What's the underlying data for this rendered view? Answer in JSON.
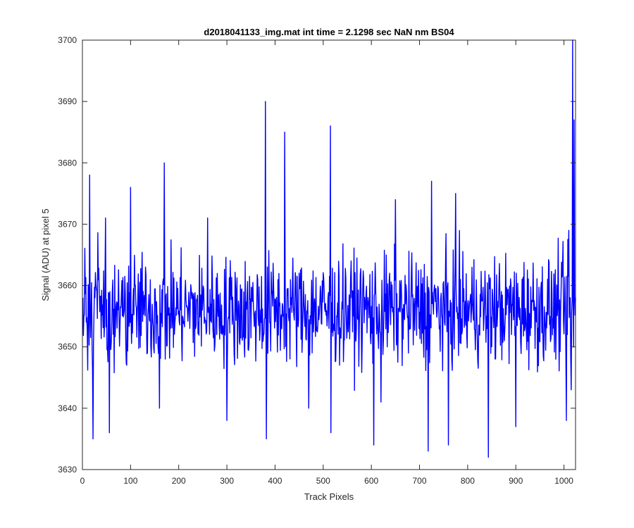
{
  "chart_data": {
    "type": "line",
    "title": "d2018041133_img.mat int time = 2.1298 sec  NaN nm BS04",
    "xlabel": "Track Pixels",
    "ylabel": "Signal (ADU) at pixel 5",
    "xlim": [
      0,
      1024
    ],
    "ylim": [
      3630,
      3700
    ],
    "xticks": [
      0,
      100,
      200,
      300,
      400,
      500,
      600,
      700,
      800,
      900,
      1000
    ],
    "yticks": [
      3630,
      3640,
      3650,
      3660,
      3670,
      3680,
      3690,
      3700
    ],
    "grid": false,
    "line_color": "#0000ff",
    "series": [
      {
        "x": [
          1,
          15,
          22,
          48,
          56,
          100,
          160,
          170,
          172,
          260,
          300,
          380,
          382,
          420,
          470,
          515,
          516,
          605,
          620,
          650,
          718,
          725,
          760,
          775,
          843,
          900,
          1005,
          1010,
          1015,
          1018,
          1020,
          1021,
          1024
        ],
        "y": [
          3658,
          3678,
          3635,
          3671,
          3636,
          3676,
          3640,
          3680,
          3648,
          3671,
          3638,
          3690,
          3635,
          3685,
          3640,
          3686,
          3636,
          3634,
          3641,
          3674,
          3633,
          3677,
          3634,
          3675,
          3632,
          3637,
          3638,
          3669,
          3643,
          3700,
          3650,
          3687,
          3658
        ]
      }
    ]
  }
}
